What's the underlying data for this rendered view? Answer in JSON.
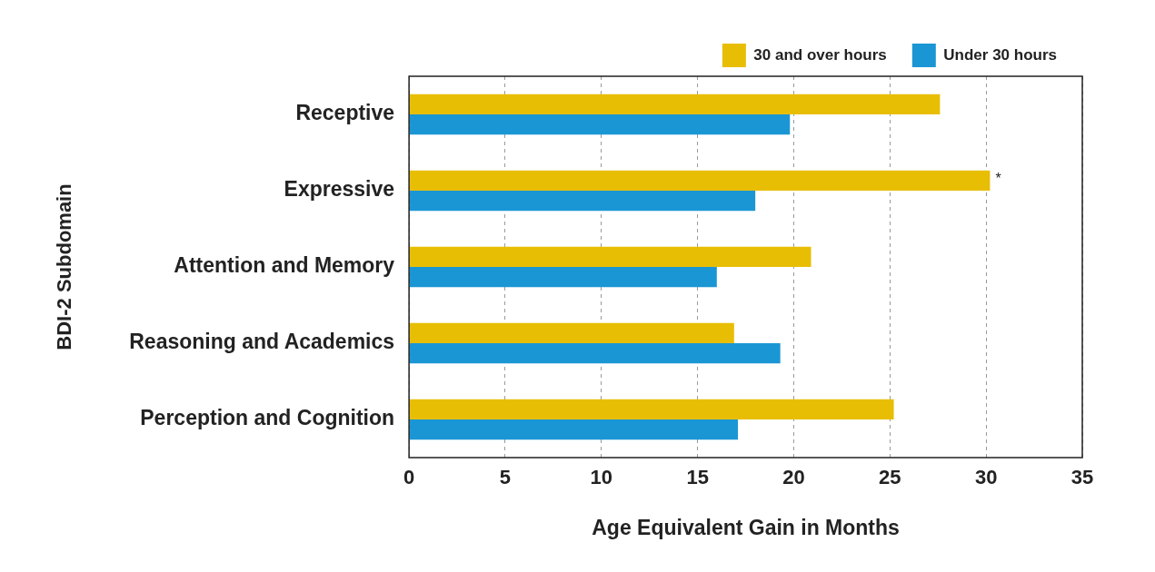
{
  "chart_data": {
    "type": "bar",
    "orientation": "horizontal",
    "xlabel": "Age Equivalent Gain in Months",
    "ylabel": "BDI-2 Subdomain",
    "categories": [
      "Receptive",
      "Expressive",
      "Attention and Memory",
      "Reasoning and Academics",
      "Perception and Cognition"
    ],
    "series": [
      {
        "name": "30 and over hours",
        "color": "#e8be05",
        "values": [
          27.6,
          30.2,
          20.9,
          16.9,
          25.2
        ]
      },
      {
        "name": "Under 30 hours",
        "color": "#1b96d4",
        "values": [
          19.8,
          18.0,
          16.0,
          19.3,
          17.1
        ]
      }
    ],
    "xlim": [
      0,
      35
    ],
    "xticks": [
      0,
      5,
      10,
      15,
      20,
      25,
      30,
      35
    ],
    "grid": "x",
    "legend": "top right",
    "annotations": [
      "*"
    ]
  }
}
